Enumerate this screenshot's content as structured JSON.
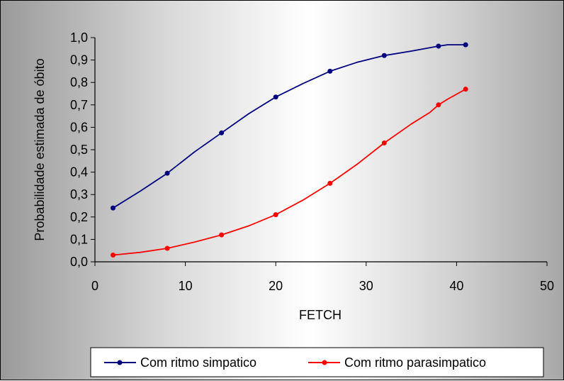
{
  "chart_data": {
    "type": "line",
    "xlabel": "FETCH",
    "ylabel": "Probabilidade estimada de óbito",
    "xlim": [
      0,
      50
    ],
    "ylim": [
      0,
      1.0
    ],
    "x_ticks": [
      "0",
      "10",
      "20",
      "30",
      "40",
      "50"
    ],
    "y_ticks": [
      "0,0",
      "0,1",
      "0,2",
      "0,3",
      "0,4",
      "0,5",
      "0,6",
      "0,7",
      "0,8",
      "0,9",
      "1,0"
    ],
    "grid": false,
    "legend_position": "bottom-right",
    "series": [
      {
        "name": "Com ritmo simpatico",
        "color": "#00007f",
        "marker_x": [
          2,
          8,
          14,
          20,
          26,
          32,
          38,
          41
        ],
        "marker_y": [
          0.24,
          0.395,
          0.575,
          0.735,
          0.85,
          0.92,
          0.962,
          0.968
        ],
        "curve_x": [
          2,
          5,
          8,
          11,
          14,
          17,
          20,
          23,
          26,
          29,
          32,
          35,
          38,
          39,
          41
        ],
        "curve_y": [
          0.24,
          0.315,
          0.395,
          0.49,
          0.575,
          0.66,
          0.735,
          0.795,
          0.85,
          0.89,
          0.92,
          0.94,
          0.962,
          0.968,
          0.968
        ]
      },
      {
        "name": "Com ritmo parasimpatico",
        "color": "#ff0000",
        "marker_x": [
          2,
          8,
          14,
          20,
          26,
          32,
          38,
          41
        ],
        "marker_y": [
          0.03,
          0.06,
          0.12,
          0.21,
          0.35,
          0.53,
          0.7,
          0.77
        ],
        "curve_x": [
          2,
          5,
          8,
          11,
          14,
          17,
          20,
          23,
          26,
          29,
          32,
          35,
          37,
          38,
          39,
          41
        ],
        "curve_y": [
          0.03,
          0.042,
          0.06,
          0.088,
          0.12,
          0.16,
          0.21,
          0.275,
          0.35,
          0.435,
          0.53,
          0.615,
          0.665,
          0.7,
          0.725,
          0.77
        ]
      }
    ]
  }
}
